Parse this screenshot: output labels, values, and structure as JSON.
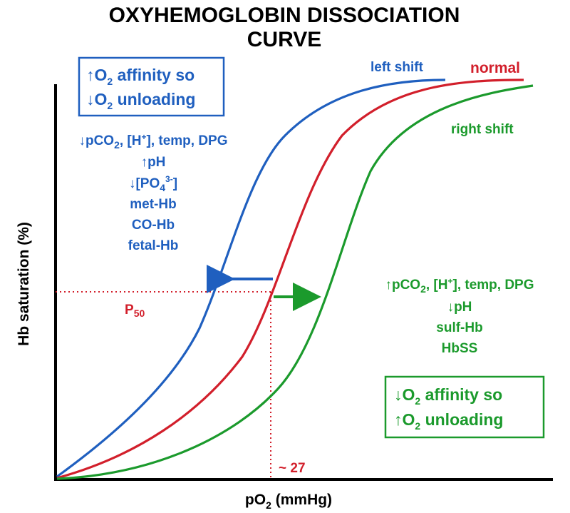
{
  "chart_data": {
    "type": "line",
    "title_line1": "OXYHEMOGLOBIN DISSOCIATION",
    "title_line2": "CURVE",
    "xlabel_base": "pO",
    "xlabel_sub": "2",
    "xlabel_rest": " (mmHg)",
    "ylabel": "Hb saturation (%)",
    "series": [
      {
        "name": "left shift",
        "color": "#1f5fbf"
      },
      {
        "name": "normal",
        "color": "#d21f2b"
      },
      {
        "name": "right shift",
        "color": "#1b9a2c"
      }
    ],
    "p50_label": "P",
    "p50_sub": "50",
    "p50_value_label": "~ 27",
    "left_box": {
      "line1_arrow": "↑",
      "line1_base": "O",
      "line1_sub": "2",
      "line1_rest": " affinity so",
      "line2_arrow": "↓",
      "line2_base": "O",
      "line2_sub": "2",
      "line2_rest": " unloading"
    },
    "right_box": {
      "line1_arrow": "↓",
      "line1_base": "O",
      "line1_sub": "2",
      "line1_rest": " affinity so",
      "line2_arrow": "↑",
      "line2_base": "O",
      "line2_sub": "2",
      "line2_rest": " unloading"
    },
    "left_causes": {
      "line1_a": "↓pCO",
      "line1_sub": "2",
      "line1_b": ", [H",
      "line1_sup": "+",
      "line1_c": "], temp, DPG",
      "line2": "↑pH",
      "line3_a": "↓[PO",
      "line3_sub": "4",
      "line3_sup": "3-",
      "line3_b": "]",
      "line4": "met-Hb",
      "line5": "CO-Hb",
      "line6": "fetal-Hb"
    },
    "right_causes": {
      "line1_a": "↑pCO",
      "line1_sub": "2",
      "line1_b": ", [H",
      "line1_sup": "+",
      "line1_c": "], temp, DPG",
      "line2": "↓pH",
      "line3": "sulf-Hb",
      "line4": "HbSS"
    }
  }
}
